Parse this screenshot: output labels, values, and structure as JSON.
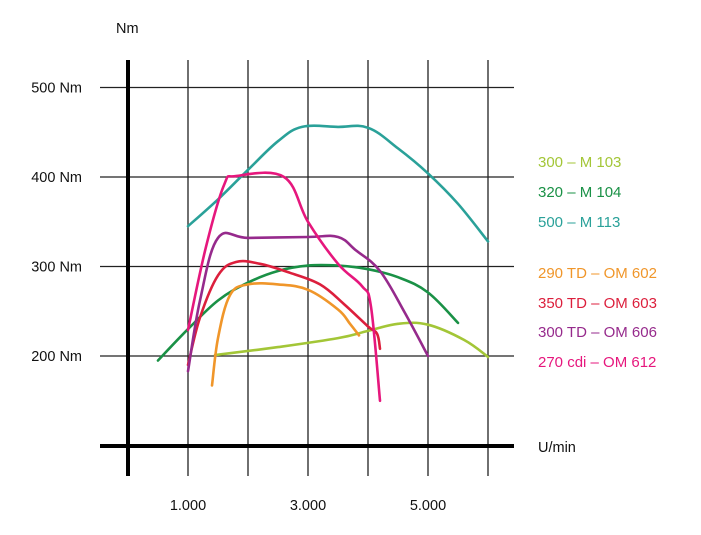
{
  "chart_data": {
    "type": "line",
    "ylabel": "Nm",
    "xlabel": "U/min",
    "xlim": [
      0,
      6500
    ],
    "ylim": [
      100,
      500
    ],
    "x_ticks": [
      {
        "value": 1000,
        "label": "1.000"
      },
      {
        "value": 2000,
        "label": ""
      },
      {
        "value": 3000,
        "label": "3.000"
      },
      {
        "value": 4000,
        "label": ""
      },
      {
        "value": 5000,
        "label": "5.000"
      },
      {
        "value": 6000,
        "label": ""
      }
    ],
    "y_ticks": [
      {
        "value": 200,
        "label": "200 Nm"
      },
      {
        "value": 300,
        "label": "300 Nm"
      },
      {
        "value": 400,
        "label": "400 Nm"
      },
      {
        "value": 500,
        "label": "500 Nm"
      }
    ],
    "grid": true,
    "legend_position": "right",
    "series": [
      {
        "name": "300 – M 103",
        "color": "#a3c637",
        "x": [
          1450,
          2500,
          3500,
          4000,
          4500,
          5000,
          5600,
          6000
        ],
        "y": [
          201,
          210,
          220,
          228,
          236,
          235,
          218,
          199
        ]
      },
      {
        "name": "320 – M 104",
        "color": "#1a9146",
        "x": [
          500,
          1000,
          1500,
          2000,
          2500,
          3000,
          3500,
          4000,
          4500,
          5000,
          5500
        ],
        "y": [
          195,
          230,
          262,
          282,
          295,
          301,
          301,
          297,
          288,
          271,
          237
        ]
      },
      {
        "name": "500 – M 113",
        "color": "#2aa199",
        "x": [
          1000,
          1500,
          2000,
          2500,
          2900,
          3500,
          4000,
          4500,
          5000,
          5500,
          6000
        ],
        "y": [
          345,
          375,
          408,
          440,
          456,
          456,
          455,
          432,
          404,
          370,
          328
        ]
      },
      {
        "name": "290 TD – OM 602",
        "color": "#f0962a",
        "x": [
          1400,
          1500,
          1700,
          2000,
          2500,
          3000,
          3500,
          3700,
          3850
        ],
        "y": [
          167,
          220,
          268,
          280,
          280,
          274,
          252,
          236,
          223
        ]
      },
      {
        "name": "350 TD – OM 603",
        "color": "#dc1f3c",
        "x": [
          1000,
          1200,
          1500,
          1800,
          2200,
          2700,
          3200,
          3600,
          4000,
          4150,
          4200
        ],
        "y": [
          190,
          243,
          290,
          305,
          303,
          293,
          280,
          258,
          233,
          225,
          208
        ]
      },
      {
        "name": "300 TD – OM 606",
        "color": "#962a8c",
        "x": [
          1000,
          1200,
          1500,
          2000,
          3000,
          3500,
          3800,
          4200,
          4600,
          5000
        ],
        "y": [
          183,
          262,
          332,
          332,
          333,
          333,
          318,
          295,
          250,
          200
        ]
      },
      {
        "name": "270 cdi – OM 612",
        "color": "#e6177d",
        "x": [
          1000,
          1300,
          1600,
          1800,
          2600,
          3000,
          3500,
          3900,
          4050,
          4200
        ],
        "y": [
          229,
          322,
          391,
          401,
          400,
          350,
          303,
          278,
          255,
          150
        ]
      }
    ]
  }
}
